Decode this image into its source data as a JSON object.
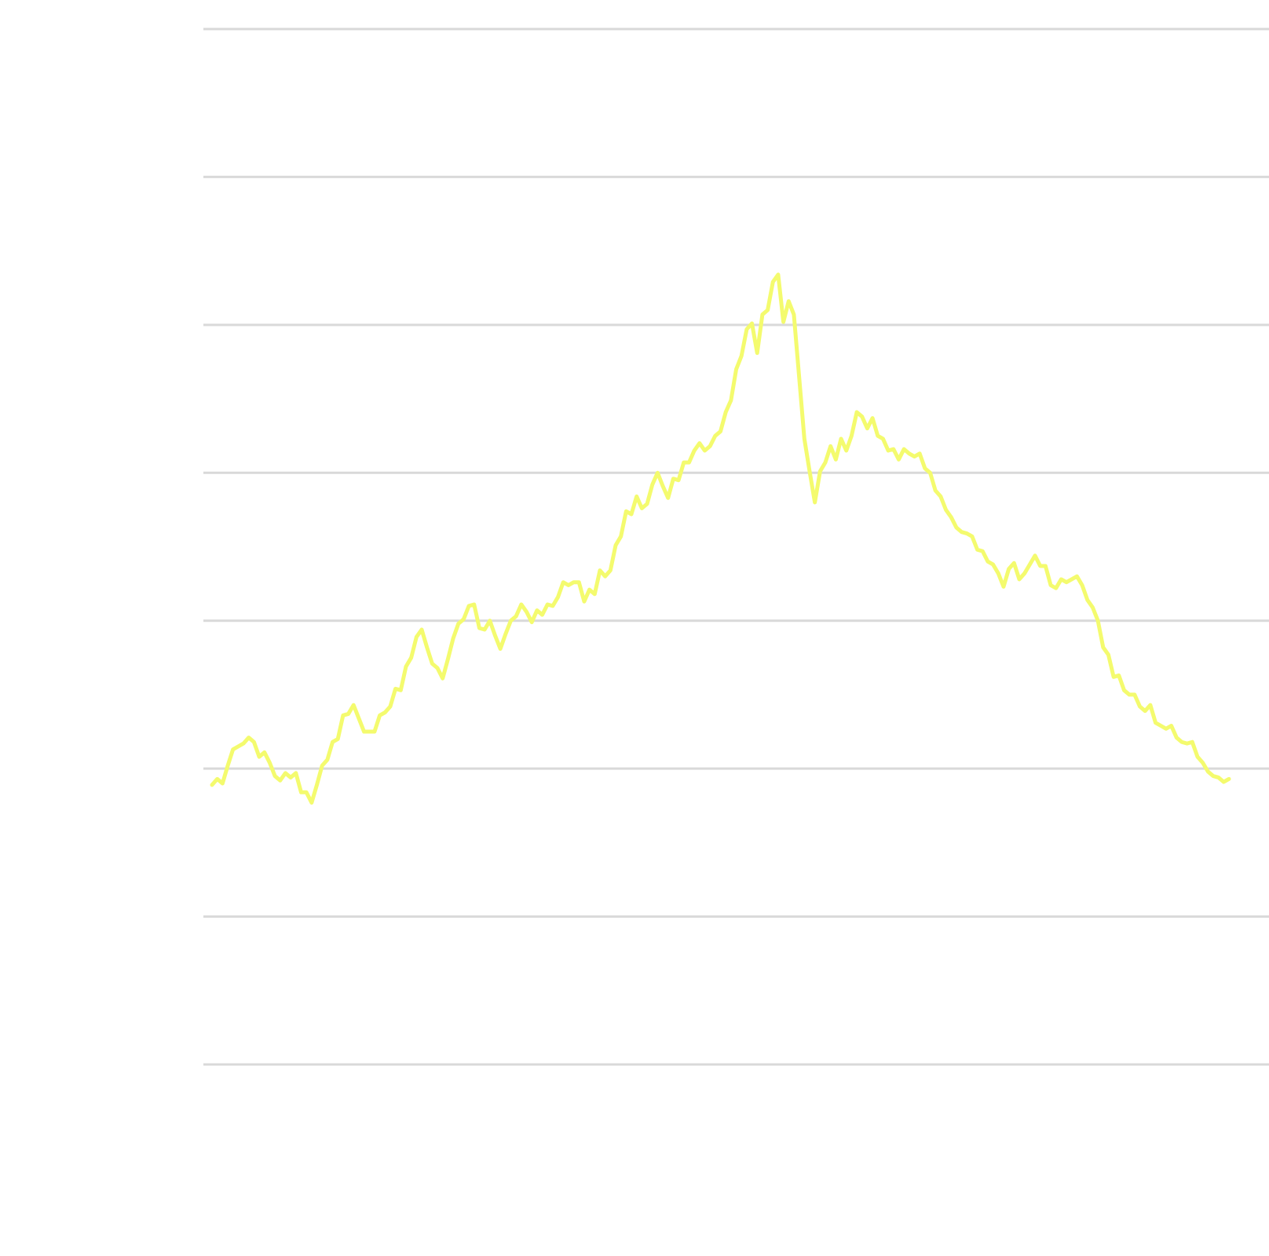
{
  "chart_data": {
    "type": "line",
    "color": "#f4fb6e",
    "grid": true,
    "ylim": [
      0,
      7
    ],
    "yticks": [
      0,
      1,
      2,
      3,
      4,
      5,
      6,
      7
    ],
    "values": [
      1.89,
      1.93,
      1.9,
      2.02,
      2.13,
      2.15,
      2.17,
      2.21,
      2.18,
      2.08,
      2.11,
      2.04,
      1.95,
      1.92,
      1.97,
      1.94,
      1.97,
      1.84,
      1.84,
      1.77,
      1.89,
      2.02,
      2.06,
      2.18,
      2.2,
      2.36,
      2.37,
      2.43,
      2.34,
      2.25,
      2.25,
      2.25,
      2.36,
      2.38,
      2.42,
      2.54,
      2.53,
      2.69,
      2.75,
      2.89,
      2.94,
      2.82,
      2.71,
      2.68,
      2.61,
      2.74,
      2.88,
      2.98,
      3.01,
      3.1,
      3.11,
      2.95,
      2.94,
      3.0,
      2.9,
      2.81,
      2.91,
      3.0,
      3.03,
      3.11,
      3.06,
      2.99,
      3.07,
      3.04,
      3.11,
      3.1,
      3.16,
      3.26,
      3.24,
      3.26,
      3.26,
      3.13,
      3.21,
      3.18,
      3.34,
      3.3,
      3.34,
      3.51,
      3.57,
      3.74,
      3.72,
      3.84,
      3.76,
      3.79,
      3.92,
      4.0,
      3.91,
      3.83,
      3.96,
      3.95,
      4.07,
      4.07,
      4.15,
      4.2,
      4.15,
      4.18,
      4.25,
      4.28,
      4.41,
      4.49,
      4.7,
      4.79,
      4.97,
      5.01,
      4.81,
      5.07,
      5.1,
      5.29,
      5.34,
      5.02,
      5.16,
      5.07,
      4.65,
      4.23,
      4.01,
      3.8,
      4.01,
      4.07,
      4.18,
      4.09,
      4.23,
      4.15,
      4.25,
      4.41,
      4.38,
      4.3,
      4.37,
      4.25,
      4.23,
      4.15,
      4.16,
      4.09,
      4.16,
      4.13,
      4.11,
      4.13,
      4.03,
      4.0,
      3.88,
      3.84,
      3.75,
      3.7,
      3.63,
      3.6,
      3.59,
      3.57,
      3.48,
      3.47,
      3.4,
      3.38,
      3.32,
      3.23,
      3.35,
      3.39,
      3.28,
      3.32,
      3.38,
      3.44,
      3.37,
      3.37,
      3.24,
      3.22,
      3.28,
      3.26,
      3.28,
      3.3,
      3.24,
      3.14,
      3.09,
      3.0,
      2.82,
      2.77,
      2.62,
      2.63,
      2.53,
      2.5,
      2.5,
      2.42,
      2.39,
      2.43,
      2.31,
      2.29,
      2.27,
      2.29,
      2.21,
      2.18,
      2.17,
      2.18,
      2.08,
      2.04,
      1.98,
      1.95,
      1.94,
      1.91,
      1.93
    ]
  }
}
